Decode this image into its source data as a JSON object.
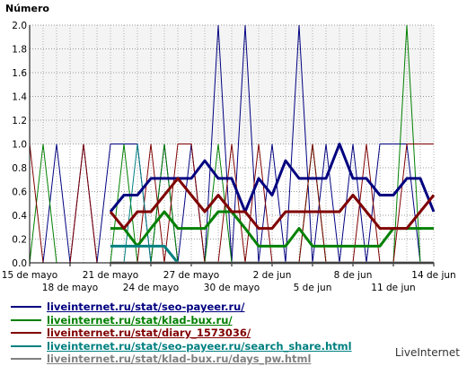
{
  "ylabel": "Número",
  "brand": "LiveInternet",
  "chart_data": {
    "type": "line",
    "ylabel": "Número",
    "ylim": [
      0,
      2.0
    ],
    "yticks": [
      "0.0",
      "0.2",
      "0.4",
      "0.6",
      "0.8",
      "1.0",
      "1.2",
      "1.4",
      "1.6",
      "1.8",
      "2.0"
    ],
    "x_tick_labels_upper": [
      "15 de mayo",
      "21 de mayo",
      "27 de mayo",
      "2 de jun",
      "8 de jun",
      "14 de jun"
    ],
    "x_tick_labels_lower": [
      "18 de mayo",
      "24 de mayo",
      "30 de mayo",
      "5 de jun",
      "11 de jun"
    ],
    "x": [
      "2024-05-15",
      "2024-05-16",
      "2024-05-17",
      "2024-05-18",
      "2024-05-19",
      "2024-05-20",
      "2024-05-21",
      "2024-05-22",
      "2024-05-23",
      "2024-05-24",
      "2024-05-25",
      "2024-05-26",
      "2024-05-27",
      "2024-05-28",
      "2024-05-29",
      "2024-05-30",
      "2024-05-31",
      "2024-06-01",
      "2024-06-02",
      "2024-06-03",
      "2024-06-04",
      "2024-06-05",
      "2024-06-06",
      "2024-06-07",
      "2024-06-08",
      "2024-06-09",
      "2024-06-10",
      "2024-06-11",
      "2024-06-12",
      "2024-06-13",
      "2024-06-14"
    ],
    "grid": true,
    "legend_position": "bottom",
    "series": [
      {
        "name": "liveinternet.ru/stat/seo-payeer.ru/",
        "color": "#000080",
        "values": [
          0,
          0,
          1,
          0,
          1,
          0,
          1,
          1,
          1,
          0,
          1,
          0,
          1,
          0,
          2,
          0,
          2,
          0,
          1,
          0,
          2,
          0,
          1,
          0,
          1,
          0,
          1,
          1,
          1,
          0,
          0
        ],
        "avg": [
          null,
          null,
          null,
          null,
          null,
          null,
          0.43,
          0.57,
          0.57,
          0.71,
          0.71,
          0.71,
          0.71,
          0.86,
          0.71,
          0.71,
          0.43,
          0.71,
          0.57,
          0.86,
          0.71,
          0.71,
          0.71,
          1.0,
          0.71,
          0.71,
          0.57,
          0.57,
          0.71,
          0.71,
          0.43
        ]
      },
      {
        "name": "liveinternet.ru/stat/klad-bux.ru/",
        "color": "#008000",
        "values": [
          0,
          1,
          0,
          0,
          0,
          0,
          0,
          1,
          0,
          0,
          1,
          0,
          0,
          0,
          1,
          0,
          0,
          0,
          0,
          0,
          0,
          1,
          0,
          0,
          0,
          0,
          0,
          0,
          2,
          0,
          0
        ],
        "avg": [
          null,
          null,
          null,
          null,
          null,
          null,
          0.29,
          0.29,
          0.14,
          0.29,
          0.43,
          0.29,
          0.29,
          0.29,
          0.43,
          0.43,
          0.29,
          0.14,
          0.14,
          0.14,
          0.29,
          0.14,
          0.14,
          0.14,
          0.14,
          0.14,
          0.14,
          0.29,
          0.29,
          0.29,
          0.29
        ]
      },
      {
        "name": "liveinternet.ru/stat/diary_1573036/",
        "color": "#800000",
        "values": [
          1,
          0,
          0,
          0,
          1,
          0,
          0,
          0,
          0,
          1,
          0,
          1,
          1,
          0,
          0,
          1,
          0,
          1,
          0,
          0,
          0,
          1,
          0,
          0,
          0,
          1,
          0,
          0,
          1,
          1,
          1
        ],
        "avg": [
          null,
          null,
          null,
          null,
          null,
          null,
          0.43,
          0.29,
          0.43,
          0.43,
          0.57,
          0.71,
          0.57,
          0.43,
          0.57,
          0.43,
          0.43,
          0.29,
          0.29,
          0.43,
          0.43,
          0.43,
          0.43,
          0.43,
          0.57,
          0.43,
          0.29,
          0.29,
          0.29,
          0.43,
          0.57
        ]
      },
      {
        "name": "liveinternet.ru/stat/seo-payeer.ru/search_share.html",
        "color": "#008080",
        "values": [
          0,
          0,
          0,
          0,
          0,
          0,
          0,
          0,
          1,
          0,
          0,
          0,
          0,
          0,
          0,
          0,
          0,
          0,
          0,
          0,
          0,
          0,
          0,
          0,
          0,
          0,
          0,
          0,
          0,
          0,
          0
        ],
        "avg": [
          null,
          null,
          null,
          null,
          null,
          null,
          0.14,
          0.14,
          0.14,
          0.14,
          0.14,
          0,
          0,
          0,
          0,
          0,
          0,
          0,
          0,
          0,
          0,
          0,
          0,
          0,
          0,
          0,
          0,
          0,
          0,
          0,
          0
        ]
      },
      {
        "name": "liveinternet.ru/stat/klad-bux.ru/days_pw.html",
        "color": "#808080",
        "values": [
          0,
          0,
          0,
          0,
          0,
          0,
          0,
          0,
          0,
          0,
          0,
          0,
          0,
          0,
          0,
          0,
          0,
          0,
          0,
          0,
          0,
          0,
          0,
          0,
          0,
          0,
          0,
          0,
          0,
          0,
          0
        ],
        "avg": [
          null,
          null,
          null,
          null,
          null,
          null,
          0,
          0,
          0,
          0,
          0,
          0,
          0,
          0,
          0,
          0,
          0,
          0,
          0,
          0,
          0,
          0,
          0,
          0,
          0,
          0,
          0,
          0,
          0,
          0,
          0
        ]
      }
    ]
  }
}
